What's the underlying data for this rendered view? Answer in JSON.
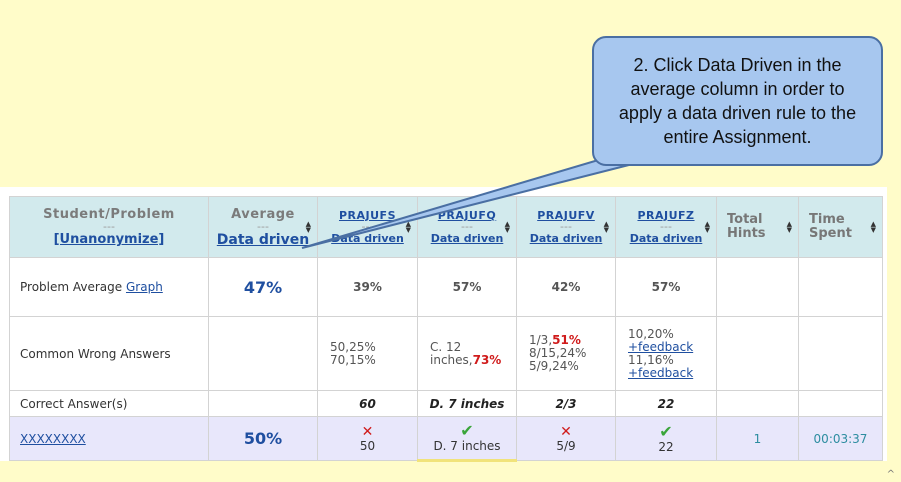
{
  "callout": {
    "text": "2. Click Data Driven in the average column in order to apply a data driven rule to the entire Assignment."
  },
  "header": {
    "student_problem": "Student/Problem",
    "dash": "---",
    "unanonymize": "[Unanonymize]",
    "average": "Average",
    "data_driven": "Data driven",
    "problems": [
      "PRAJUFS",
      "PRAJUFQ",
      "PRAJUFV",
      "PRAJUFZ"
    ],
    "total_hints": "Total Hints",
    "time_spent": "Time Spent"
  },
  "rows": {
    "problem_average": {
      "label": "Problem Average",
      "graph_link": "Graph",
      "average": "47%",
      "values": [
        "39%",
        "57%",
        "42%",
        "57%"
      ]
    },
    "common_wrong": {
      "label": "Common Wrong Answers",
      "c1a": "50,25%",
      "c1b": "70,15%",
      "c2a": "C. 12",
      "c2b": "inches,",
      "c2b_red": "73%",
      "c3a": "1/3,",
      "c3a_red": "51%",
      "c3b": "8/15,24%",
      "c3c": "5/9,24%",
      "c4a": "10,20%",
      "c4b": "+feedback",
      "c4c": "11,16%",
      "c4d": "+feedback"
    },
    "correct": {
      "label": "Correct Answer(s)",
      "values": [
        "60",
        "D. 7 inches",
        "2/3",
        "22"
      ]
    },
    "student": {
      "name": "XXXXXXXX",
      "average": "50%",
      "answers": [
        "50",
        "D. 7 inches",
        "5/9",
        "22"
      ],
      "hints": "1",
      "time": "00:03:37"
    }
  },
  "icons": {
    "wrong": "x-icon",
    "right": "check-icon",
    "sort": "sort-arrows-icon"
  },
  "colors": {
    "background": "#fffcc9",
    "header": "#d2eaed",
    "link": "#1f4fa0",
    "wrong": "#d01b1b",
    "right": "#3aa53a",
    "student_row": "#e8e7fb",
    "callout": "#a7c7ef"
  }
}
